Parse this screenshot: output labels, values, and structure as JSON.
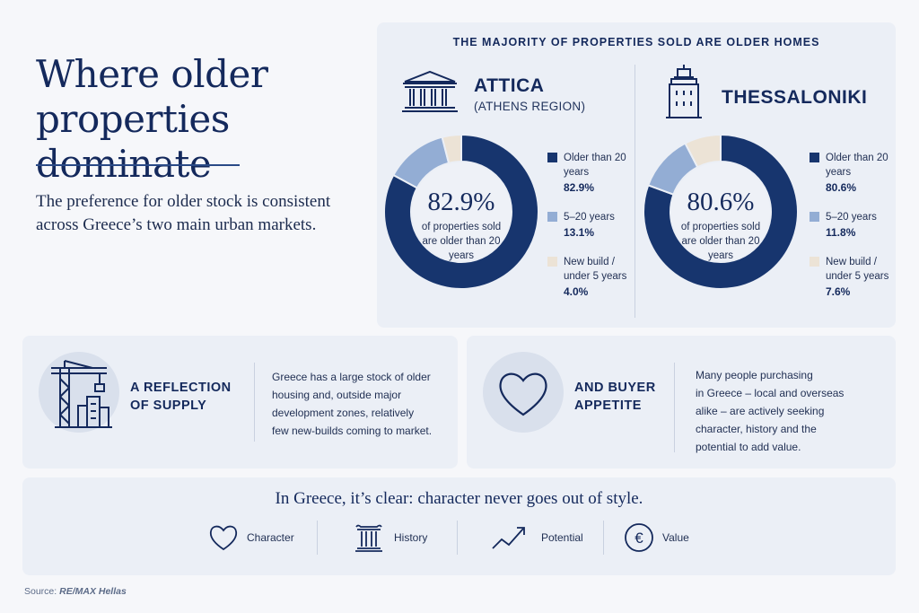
{
  "headline": "Where older properties dominate",
  "intro": "The preference for older stock is consistent across Greece’s two main urban markets.",
  "panel_title": "THE MAJORITY OF PROPERTIES SOLD ARE OLDER HOMES",
  "colors": {
    "older": "#17356e",
    "mid": "#93add4",
    "new": "#ece3d6"
  },
  "chart_data": [
    {
      "type": "pie",
      "title": "ATTICA",
      "subtitle": "(ATHENS REGION)",
      "icon": "parthenon-icon",
      "center_value": "82.9%",
      "center_caption": "of properties sold are older than 20 years",
      "categories": [
        "Older than 20 years",
        "5–20 years",
        "New build / under 5 years"
      ],
      "values": [
        82.9,
        13.1,
        4.0
      ],
      "value_labels": [
        "82.9%",
        "13.1%",
        "4.0%"
      ],
      "legend": "right"
    },
    {
      "type": "pie",
      "title": "THESSALONIKI",
      "subtitle": "",
      "icon": "white-tower-icon",
      "center_value": "80.6%",
      "center_caption": "of properties sold are older than 20 years",
      "categories": [
        "Older than 20 years",
        "5–20 years",
        "New build / under 5 years"
      ],
      "values": [
        80.6,
        11.8,
        7.6
      ],
      "value_labels": [
        "80.6%",
        "11.8%",
        "7.6%"
      ],
      "legend": "right"
    }
  ],
  "cards": [
    {
      "icon": "crane-buildings-icon",
      "heading": "A REFLECTION OF SUPPLY",
      "body_lines": [
        "Greece has a large stock of older",
        "housing and, outside major",
        "development zones, relatively",
        "few new-builds coming to market."
      ]
    },
    {
      "icon": "heart-icon",
      "heading": "AND BUYER APPETITE",
      "body_lines": [
        "Many people purchasing",
        "in Greece – local and overseas",
        "alike – are actively seeking",
        "character, history and the",
        "potential to add value."
      ]
    }
  ],
  "tagline": "In Greece, it’s clear: character never goes out of style.",
  "values": [
    {
      "icon": "heart-icon",
      "label": "Character"
    },
    {
      "icon": "column-icon",
      "label": "History"
    },
    {
      "icon": "trend-up-icon",
      "label": "Potential"
    },
    {
      "icon": "euro-icon",
      "label": "Value"
    }
  ],
  "source_prefix": "Source:",
  "source_name": "RE/MAX Hellas"
}
